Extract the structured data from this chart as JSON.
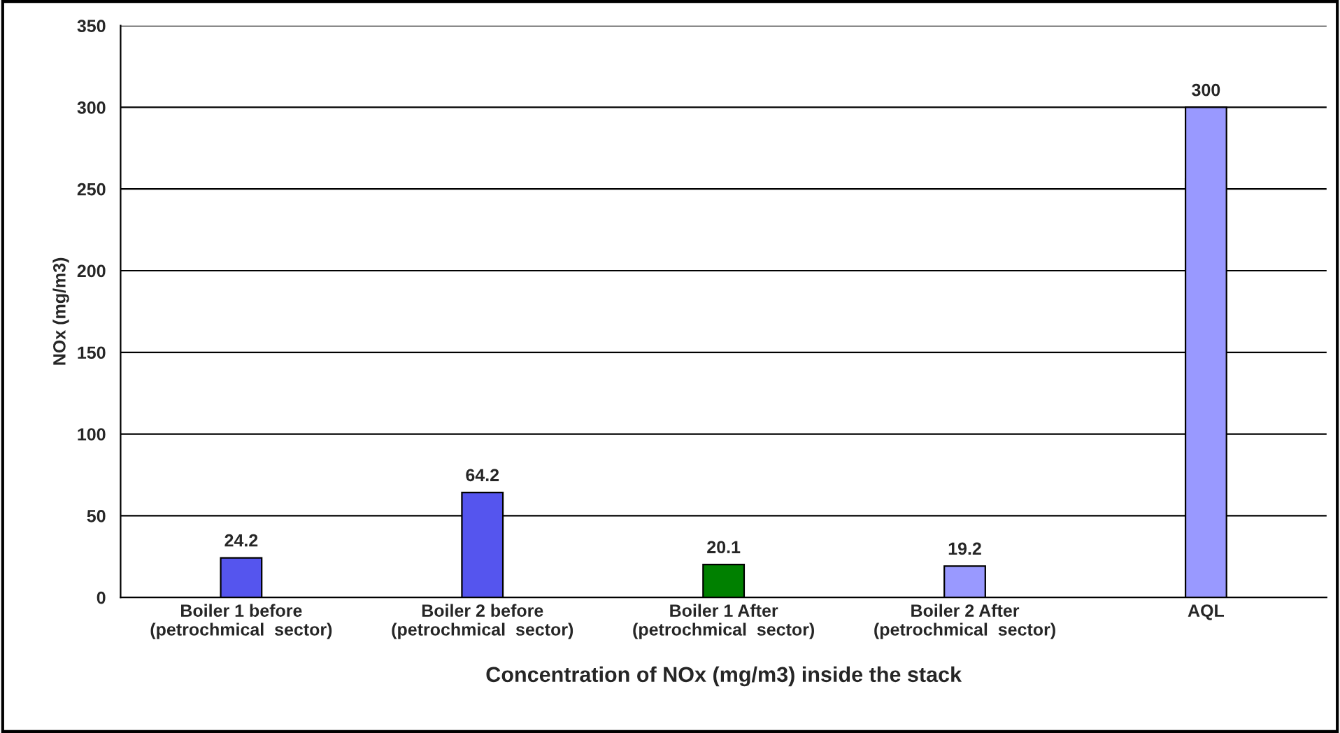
{
  "chart_data": {
    "type": "bar",
    "xlabel": "Concentration of NOx (mg/m3) inside the stack",
    "ylabel": "NOx (mg/m3)",
    "categories": [
      "Boiler 1 before\n(petrochmical  sector)",
      "Boiler 2 before\n(petrochmical  sector)",
      "Boiler 1 After\n(petrochmical  sector)",
      "Boiler 2 After\n(petrochmical  sector)",
      "AQL"
    ],
    "values": [
      24.2,
      64.2,
      20.1,
      19.2,
      300
    ],
    "colors": [
      "#5555ee",
      "#5555ee",
      "#008000",
      "#9999ff",
      "#9999ff"
    ],
    "ylim": [
      0,
      350
    ],
    "yticks": [
      0,
      50,
      100,
      150,
      200,
      250,
      300,
      350
    ],
    "grid": "y",
    "data_labels": true
  }
}
